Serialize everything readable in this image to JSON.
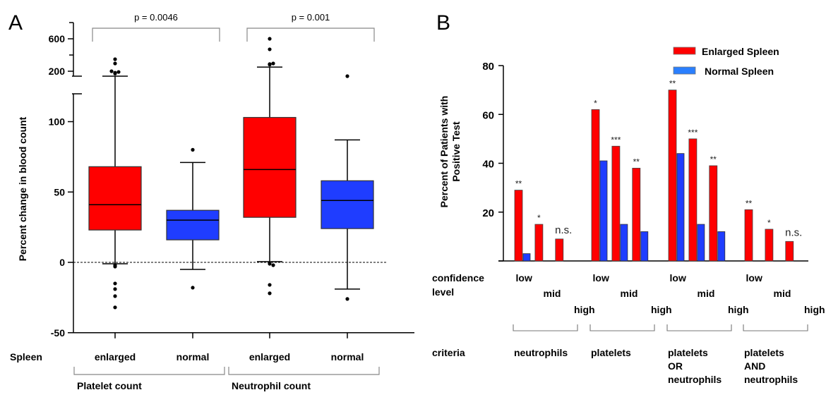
{
  "chart_data": [
    {
      "panel_label": "A",
      "type": "box",
      "ylabel": "Percent change in blood count",
      "yticks_lower": [
        "-50",
        "0",
        "50",
        "100"
      ],
      "yticks_upper": [
        "200",
        "600"
      ],
      "ylim_lower": [
        -50,
        120
      ],
      "ylim_upper": [
        150,
        700
      ],
      "reference_line": 0,
      "x_row_label": "Spleen",
      "groups": [
        {
          "label": "Platelet count",
          "p_value": "p = 0.0046",
          "boxes": [
            {
              "category": "enlarged",
              "color": "#ff0000",
              "q1": 23,
              "median": 41,
              "q3": 68,
              "whisker_low": -1,
              "whisker_high": 160,
              "outliers_high": [
                185,
                190,
                195,
                200,
                260,
                300
              ],
              "outliers_low": [
                -2,
                -3,
                -15,
                -19,
                -24,
                -32
              ]
            },
            {
              "category": "normal",
              "color": "#1f3dff",
              "q1": 16,
              "median": 30,
              "q3": 37,
              "whisker_low": -5,
              "whisker_high": 71,
              "outliers_high": [
                80
              ],
              "outliers_low": [
                -18
              ]
            }
          ]
        },
        {
          "label": "Neutrophil count",
          "p_value": "p = 0.001",
          "boxes": [
            {
              "category": "enlarged",
              "color": "#ff0000",
              "q1": 32,
              "median": 66,
              "q3": 103,
              "whisker_low": 0.5,
              "whisker_high": 230,
              "outliers_high": [
                250,
                255,
                260,
                420,
                600
              ],
              "outliers_low": [
                -1,
                -2,
                -16,
                -22
              ]
            },
            {
              "category": "normal",
              "color": "#1f3dff",
              "q1": 24,
              "median": 44,
              "q3": 58,
              "whisker_low": -19,
              "whisker_high": 87,
              "outliers_high": [
                160
              ],
              "outliers_low": [
                -26
              ]
            }
          ]
        }
      ]
    },
    {
      "panel_label": "B",
      "type": "bar",
      "ylabel_line1": "Percent of Patients with",
      "ylabel_line2": "Positive Test",
      "ylim": [
        0,
        80
      ],
      "yticks": [
        "20",
        "40",
        "60",
        "80"
      ],
      "legend": [
        {
          "name": "Enlarged Spleen",
          "color": "#ff0000"
        },
        {
          "name": "Normal Spleen",
          "color": "#2a7fff"
        }
      ],
      "legend_position": "top-right",
      "row_label_confidence_1": "confidence",
      "row_label_confidence_2": "level",
      "row_label_criteria": "criteria",
      "levels": [
        "low",
        "mid",
        "high"
      ],
      "groups": [
        {
          "criteria": [
            "neutrophils"
          ],
          "bars": [
            {
              "level": "low",
              "enlarged": 29,
              "normal": 3,
              "sig": "**"
            },
            {
              "level": "mid",
              "enlarged": 15,
              "normal": null,
              "sig": "*"
            },
            {
              "level": "high",
              "enlarged": 9,
              "normal": null,
              "sig": "n.s."
            }
          ]
        },
        {
          "criteria": [
            "platelets"
          ],
          "bars": [
            {
              "level": "low",
              "enlarged": 62,
              "normal": 41,
              "sig": "*"
            },
            {
              "level": "mid",
              "enlarged": 47,
              "normal": 15,
              "sig": "***"
            },
            {
              "level": "high",
              "enlarged": 38,
              "normal": 12,
              "sig": "**"
            }
          ]
        },
        {
          "criteria": [
            "platelets",
            "OR",
            "neutrophils"
          ],
          "bars": [
            {
              "level": "low",
              "enlarged": 70,
              "normal": 44,
              "sig": "**"
            },
            {
              "level": "mid",
              "enlarged": 50,
              "normal": 15,
              "sig": "***"
            },
            {
              "level": "high",
              "enlarged": 39,
              "normal": 12,
              "sig": "**"
            }
          ]
        },
        {
          "criteria": [
            "platelets",
            "AND",
            "neutrophils"
          ],
          "bars": [
            {
              "level": "low",
              "enlarged": 21,
              "normal": null,
              "sig": "**"
            },
            {
              "level": "mid",
              "enlarged": 13,
              "normal": null,
              "sig": "*"
            },
            {
              "level": "high",
              "enlarged": 8,
              "normal": null,
              "sig": "n.s."
            }
          ]
        }
      ]
    }
  ]
}
